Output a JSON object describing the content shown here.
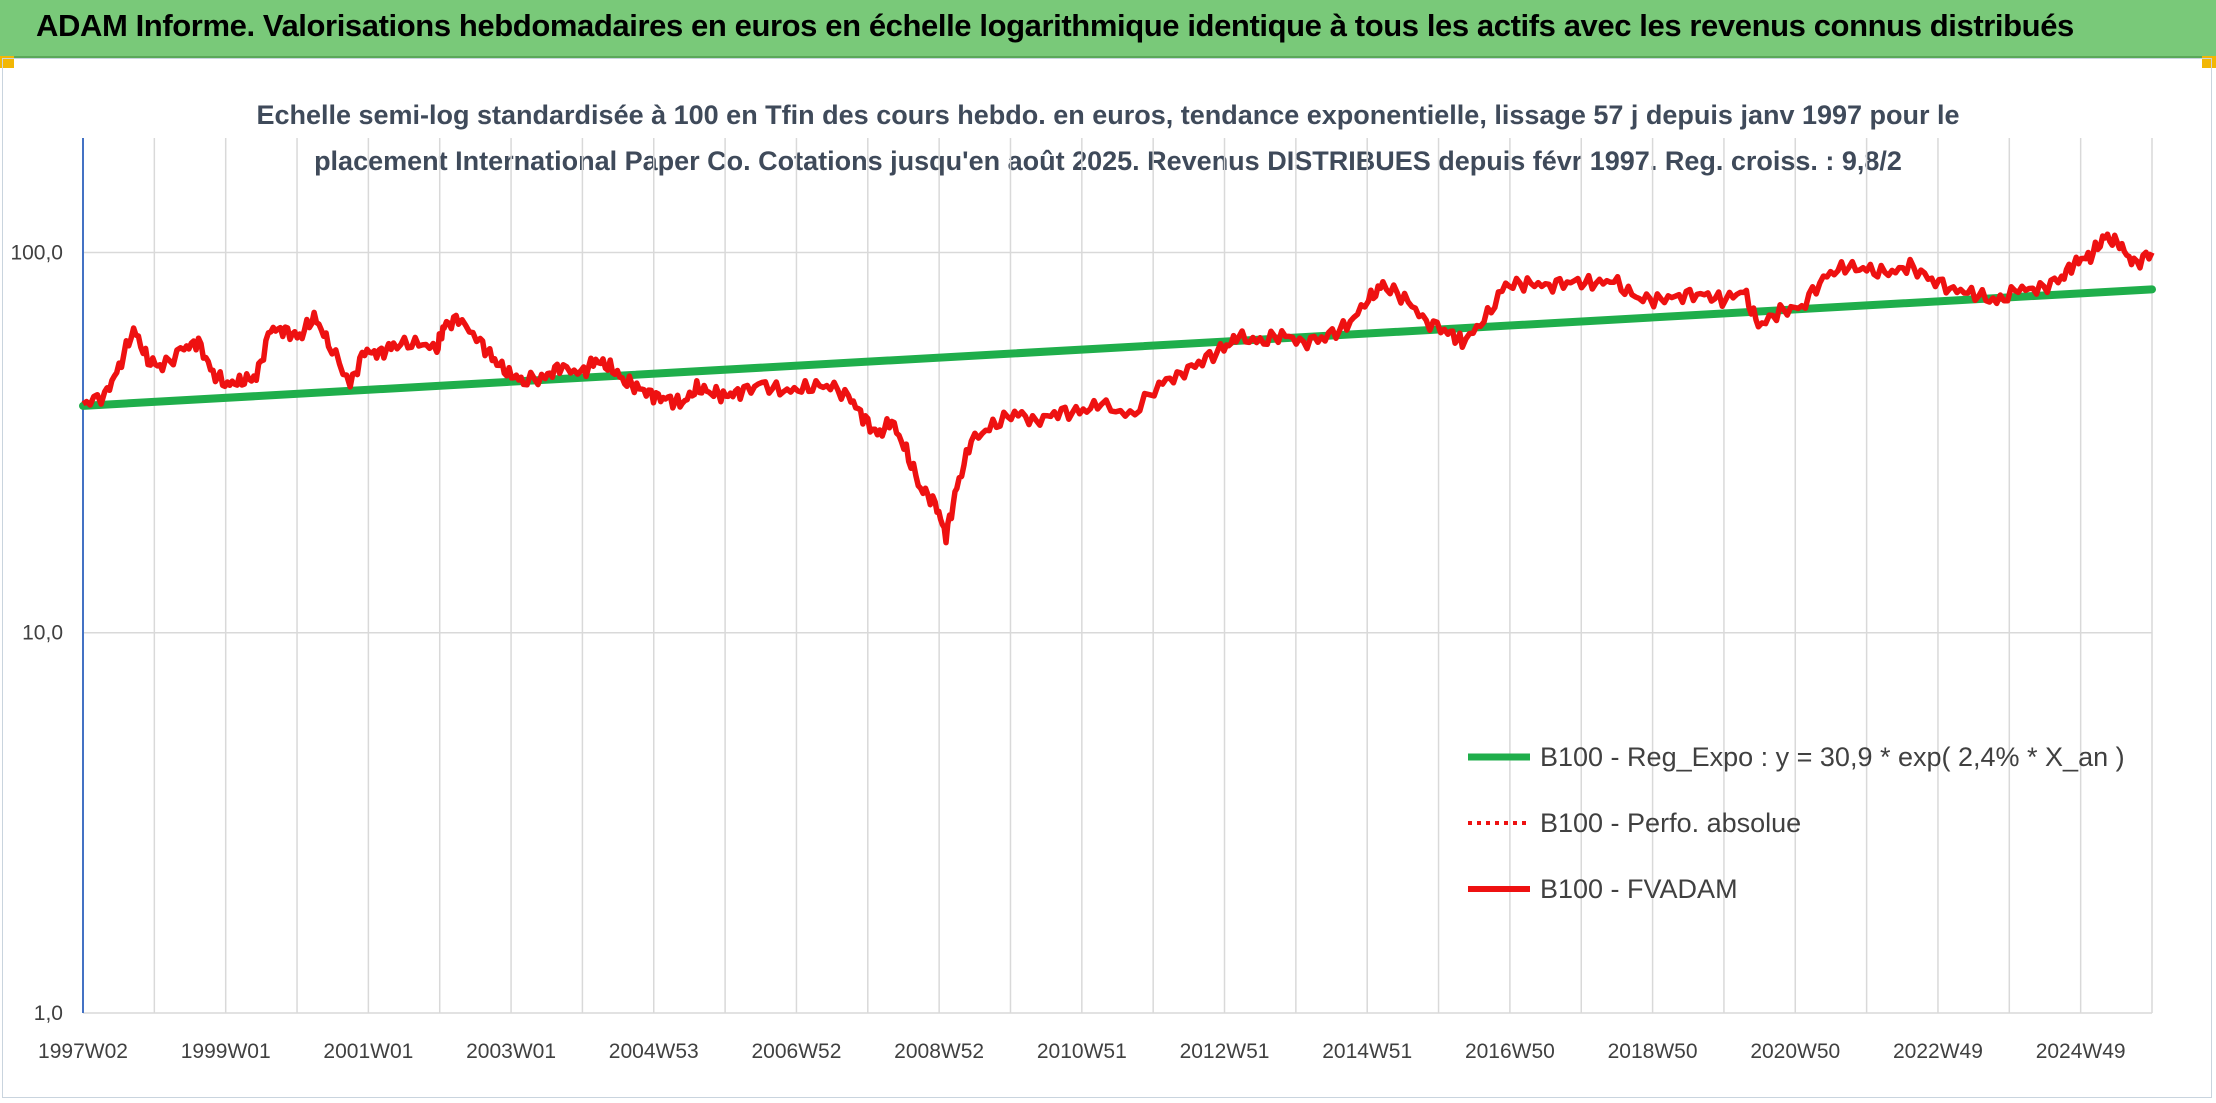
{
  "header": {
    "title": "ADAM Informe. Valorisations hebdomadaires en euros en échelle logarithmique identique à tous les actifs avec les revenus connus distribués"
  },
  "colors": {
    "header_bg": "#79c979",
    "trend": "#1fae4b",
    "series": "#ee1111",
    "grid": "#d9d9d9",
    "axis": "#4472c4"
  },
  "chart_data": {
    "type": "line",
    "title_lines": [
      "Echelle semi-log standardisée à 100 en Tfin des cours hebdo. en euros, tendance exponentielle, lissage 57 j depuis janv 1997 pour le",
      "placement International Paper Co. Cotations jusqu'en août 2025. Revenus DISTRIBUES depuis févr 1997. Reg. croiss. : 9,8/2"
    ],
    "y_scale": "log",
    "ylim": [
      1,
      200
    ],
    "y_ticks": [
      "1,0",
      "10,0",
      "100,0"
    ],
    "x_range": [
      1997.0,
      2025.65
    ],
    "x_tick_labels": [
      "1997W02",
      "1999W01",
      "2001W01",
      "2003W01",
      "2004W53",
      "2006W52",
      "2008W52",
      "2010W51",
      "2012W51",
      "2014W51",
      "2016W50",
      "2018W50",
      "2020W50",
      "2022W49",
      "2024W49"
    ],
    "grid": true,
    "legend_position": "bottom-right",
    "legend": [
      {
        "label": "B100 - Reg_Expo : y = 30,9 * exp( 2,4% *  X_an )",
        "style": "solid-green"
      },
      {
        "label": "B100 - Perfo. absolue",
        "style": "dotted-red"
      },
      {
        "label": "B100 - FVADAM",
        "style": "solid-red"
      }
    ],
    "series": [
      {
        "name": "B100 - Reg_Expo : y = 30,9 * exp( 2,4% *  X_an )",
        "x": [
          1997.0,
          2025.65
        ],
        "y": [
          39.5,
          80.0
        ]
      },
      {
        "name": "B100 - Perfo. absolue",
        "x": [],
        "y": []
      },
      {
        "name": "B100 - FVADAM",
        "x": [
          1997.0,
          1997.3,
          1997.5,
          1997.7,
          1997.9,
          1998.1,
          1998.4,
          1998.6,
          1998.8,
          1999.0,
          1999.2,
          1999.4,
          1999.6,
          1999.8,
          2000.0,
          2000.2,
          2000.4,
          2000.7,
          2000.9,
          2001.1,
          2001.3,
          2001.6,
          2001.9,
          2002.0,
          2002.2,
          2002.5,
          2002.7,
          2002.9,
          2003.1,
          2003.4,
          2003.6,
          2003.9,
          2004.1,
          2004.3,
          2004.5,
          2004.7,
          2004.9,
          2005.1,
          2005.3,
          2005.5,
          2005.7,
          2005.9,
          2006.1,
          2006.4,
          2006.7,
          2007.0,
          2007.3,
          2007.6,
          2007.8,
          2008.0,
          2008.2,
          2008.4,
          2008.6,
          2008.8,
          2008.95,
          2009.1,
          2009.3,
          2009.6,
          2009.9,
          2010.2,
          2010.5,
          2010.8,
          2011.1,
          2011.5,
          2011.9,
          2012.2,
          2012.5,
          2012.8,
          2013.0,
          2013.3,
          2013.6,
          2013.9,
          2014.2,
          2014.5,
          2014.8,
          2015.0,
          2015.3,
          2015.6,
          2015.9,
          2016.1,
          2016.4,
          2016.7,
          2017.0,
          2017.3,
          2017.6,
          2017.9,
          2018.2,
          2018.5,
          2018.8,
          2019.1,
          2019.4,
          2019.7,
          2020.0,
          2020.2,
          2020.5,
          2020.8,
          2021.1,
          2021.4,
          2021.7,
          2022.0,
          2022.3,
          2022.6,
          2022.9,
          2023.2,
          2023.5,
          2023.8,
          2024.1,
          2024.4,
          2024.6,
          2024.8,
          2025.0,
          2025.2,
          2025.4,
          2025.65
        ],
        "y": [
          40,
          42,
          50,
          63,
          52,
          50,
          56,
          58,
          48,
          45,
          46,
          47,
          63,
          62,
          60,
          68,
          58,
          45,
          55,
          54,
          57,
          58,
          56,
          64,
          67,
          58,
          52,
          48,
          46,
          47,
          50,
          48,
          52,
          50,
          46,
          44,
          42,
          41,
          40,
          44,
          43,
          42,
          43,
          45,
          43,
          44,
          45,
          42,
          37,
          33,
          36,
          30,
          24,
          22,
          18,
          24,
          32,
          35,
          38,
          36,
          38,
          38,
          40,
          37,
          45,
          48,
          52,
          56,
          60,
          58,
          61,
          58,
          60,
          64,
          75,
          82,
          76,
          66,
          62,
          58,
          66,
          82,
          83,
          82,
          84,
          83,
          84,
          76,
          75,
          77,
          78,
          75,
          79,
          64,
          70,
          72,
          86,
          92,
          90,
          88,
          92,
          85,
          80,
          78,
          74,
          80,
          80,
          86,
          95,
          98,
          110,
          105,
          93,
          100
        ]
      }
    ]
  }
}
